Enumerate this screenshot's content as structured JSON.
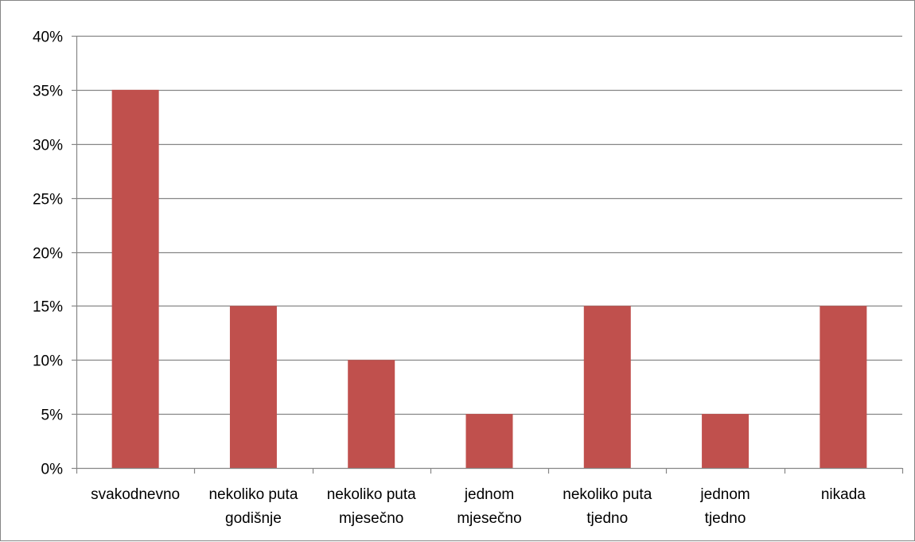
{
  "chart_data": {
    "type": "bar",
    "title": "",
    "xlabel": "",
    "ylabel": "",
    "categories": [
      [
        "svakodnevno"
      ],
      [
        "nekoliko puta",
        "godišnje"
      ],
      [
        "nekoliko puta",
        "mjesečno"
      ],
      [
        "jednom",
        "mjesečno"
      ],
      [
        "nekoliko puta",
        "tjedno"
      ],
      [
        "jednom",
        "tjedno"
      ],
      [
        "nikada"
      ]
    ],
    "values": [
      0.35,
      0.15,
      0.1,
      0.05,
      0.15,
      0.05,
      0.15
    ],
    "ylim": [
      0,
      0.4
    ],
    "yticks": [
      {
        "value": 0.0,
        "label": "0%"
      },
      {
        "value": 0.05,
        "label": "5%"
      },
      {
        "value": 0.1,
        "label": "10%"
      },
      {
        "value": 0.15,
        "label": "15%"
      },
      {
        "value": 0.2,
        "label": "20%"
      },
      {
        "value": 0.25,
        "label": "25%"
      },
      {
        "value": 0.3,
        "label": "30%"
      },
      {
        "value": 0.35,
        "label": "35%"
      },
      {
        "value": 0.4,
        "label": "40%"
      }
    ],
    "grid": true,
    "legend": "none",
    "colors": {
      "bar": "#c0504d",
      "grid": "#868686",
      "axis": "#868686",
      "text": "#000000"
    }
  }
}
